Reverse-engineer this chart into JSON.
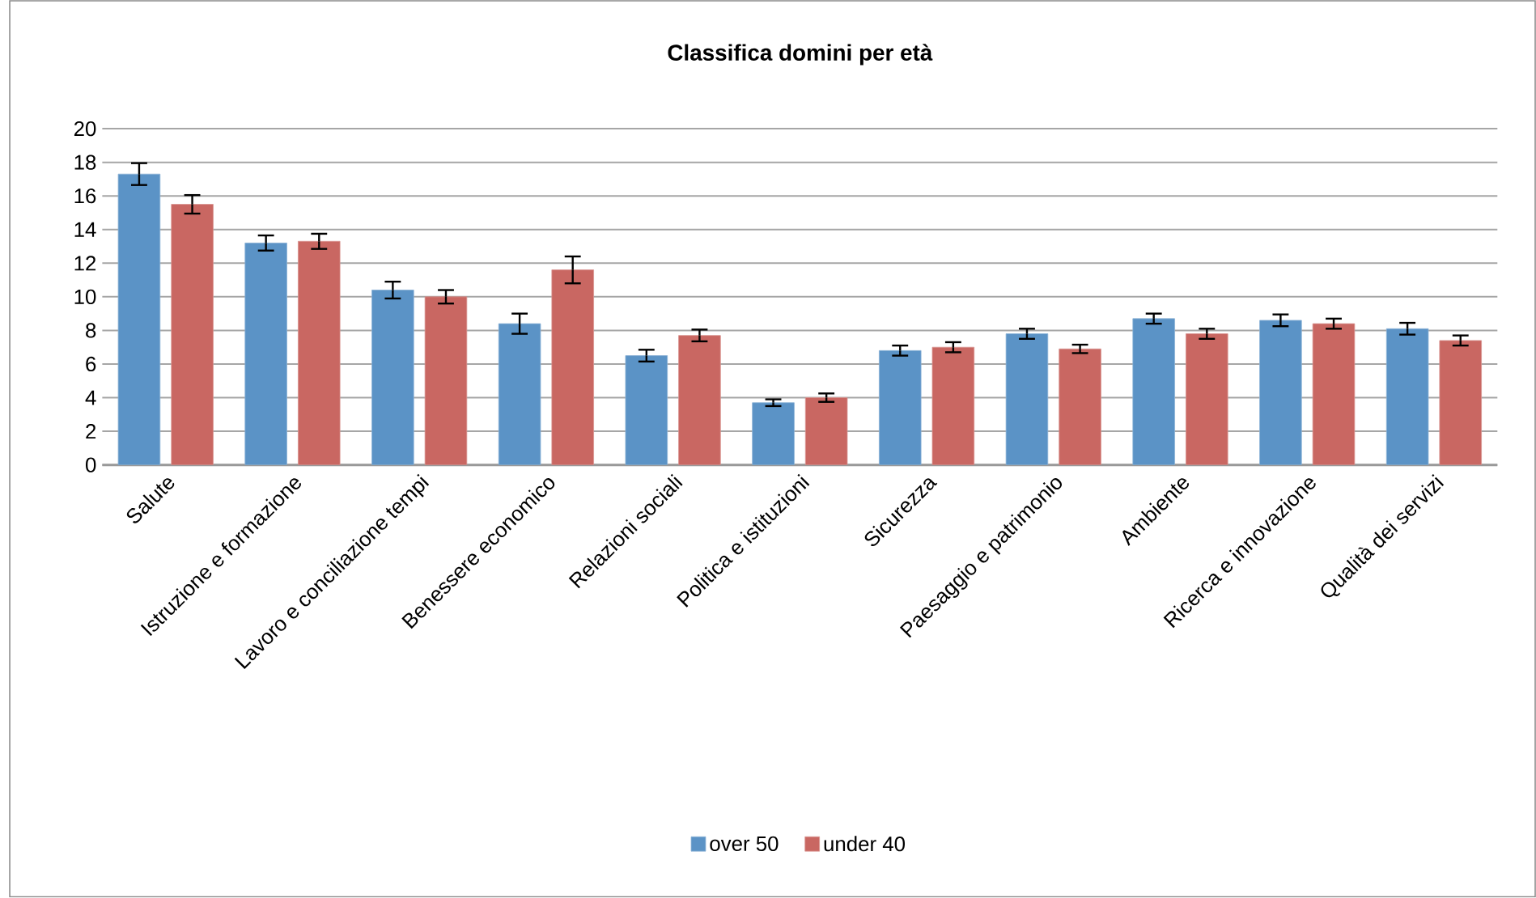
{
  "chart_data": {
    "type": "bar",
    "title": "Classifica domini per età",
    "categories": [
      "Salute",
      "Istruzione e formazione",
      "Lavoro e conciliazione tempi",
      "Benessere economico",
      "Relazioni sociali",
      "Politica e istituzioni",
      "Sicurezza",
      "Paesaggio e patrimonio",
      "Ambiente",
      "Ricerca e innovazione",
      "Qualità dei servizi"
    ],
    "series": [
      {
        "name": "over 50",
        "color": "#5b93c6",
        "values": [
          17.3,
          13.2,
          10.4,
          8.4,
          6.5,
          3.7,
          6.8,
          7.8,
          8.7,
          8.6,
          8.1
        ],
        "errors": [
          0.65,
          0.45,
          0.5,
          0.6,
          0.35,
          0.2,
          0.3,
          0.3,
          0.3,
          0.35,
          0.35
        ]
      },
      {
        "name": "under 40",
        "color": "#c96762",
        "values": [
          15.5,
          13.3,
          10.0,
          11.6,
          7.7,
          4.0,
          7.0,
          6.9,
          7.8,
          8.4,
          7.4
        ],
        "errors": [
          0.55,
          0.45,
          0.4,
          0.8,
          0.35,
          0.25,
          0.3,
          0.25,
          0.3,
          0.3,
          0.3
        ]
      }
    ],
    "ylim": [
      0,
      20
    ],
    "yticks": [
      0,
      2,
      4,
      6,
      8,
      10,
      12,
      14,
      16,
      18,
      20
    ],
    "grid": "y",
    "legend": "bottom"
  }
}
